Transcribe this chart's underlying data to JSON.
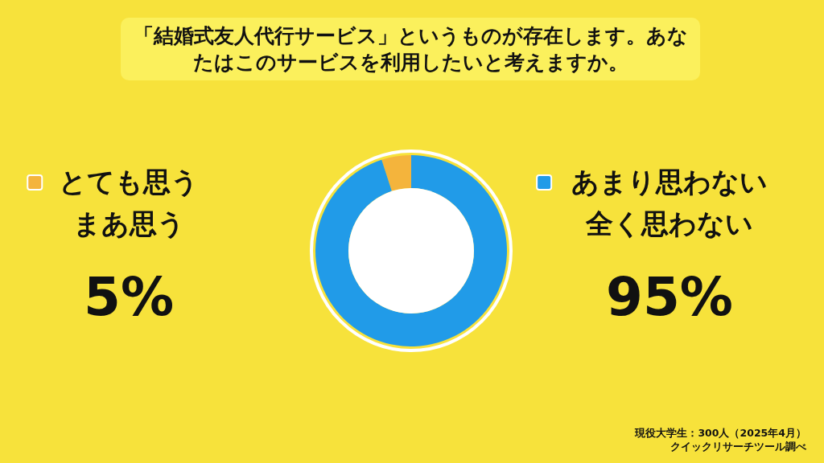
{
  "chart_data": {
    "type": "donut",
    "title": "「結婚式友人代行サービス」というものが存在します。あなたはこのサービスを利用したいと考えますか。",
    "categories": [
      "とても思うまあ思う",
      "あまり思わない全く思わない"
    ],
    "values": [
      5,
      95
    ],
    "colors": [
      "#f4b43c",
      "#219be8"
    ],
    "value_labels": [
      "5%",
      "95%"
    ],
    "legend": "left",
    "annotations": [
      "現役大学生：300人（2025年4月）",
      "クイックリサーチツール調べ"
    ]
  }
}
